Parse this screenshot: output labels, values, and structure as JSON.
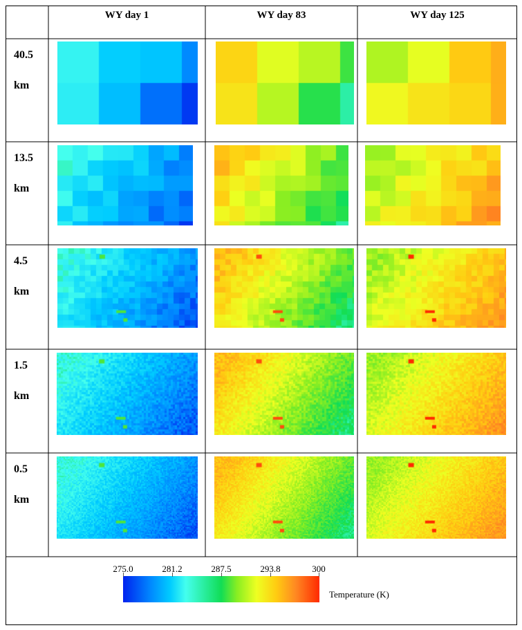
{
  "columns": [
    "WY day 1",
    "WY day 83",
    "WY day 125"
  ],
  "rows": [
    {
      "value": "40.5",
      "unit": "km"
    },
    {
      "value": "13.5",
      "unit": "km"
    },
    {
      "value": "4.5",
      "unit": "km"
    },
    {
      "value": "1.5",
      "unit": "km"
    },
    {
      "value": "0.5",
      "unit": "km"
    }
  ],
  "legend": {
    "title": "Temperature (K)",
    "ticks": [
      "275.0",
      "281.2",
      "287.5",
      "293.8",
      "300"
    ],
    "range": [
      275.0,
      300
    ],
    "colors": [
      "#0022ee",
      "#0088ff",
      "#00ccff",
      "#44ffee",
      "#11dd55",
      "#88ee22",
      "#eeff22",
      "#ffcc11",
      "#ff8822",
      "#ff2a00"
    ]
  },
  "panels_temperature": {
    "day_1": {
      "west": 283.5,
      "east": 276.5
    },
    "day_83": {
      "west": 295.0,
      "east": 285.5
    },
    "day_125": {
      "west": 289.5,
      "east": 296.5
    }
  }
}
